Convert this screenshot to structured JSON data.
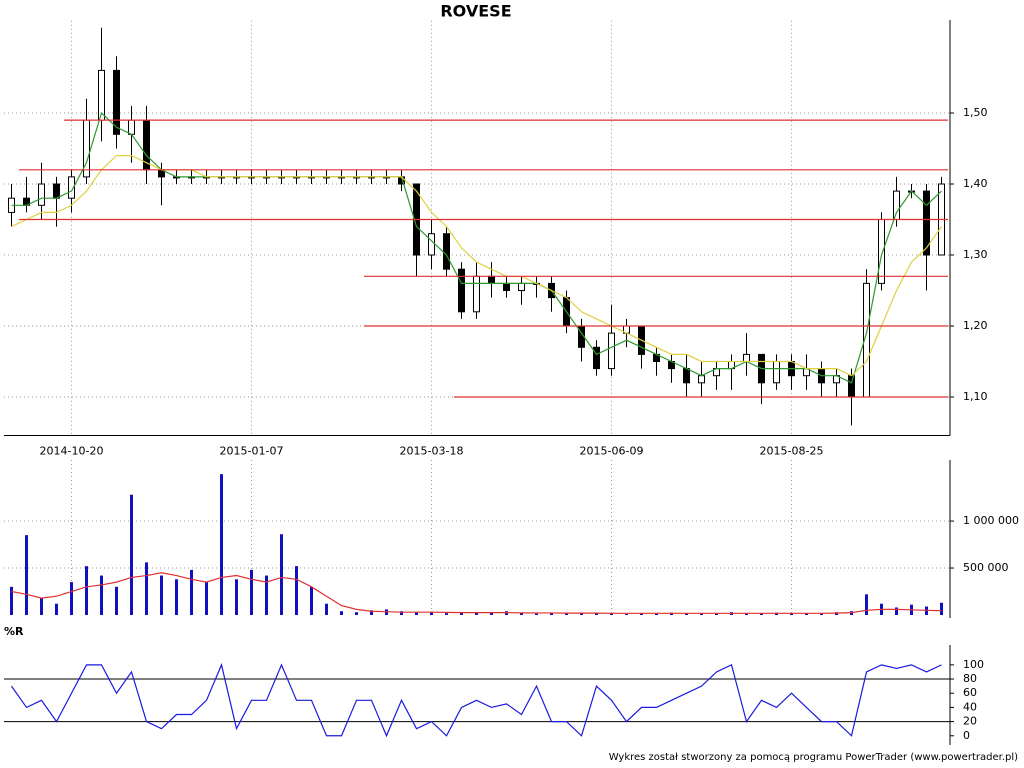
{
  "chart_data": [
    {
      "type": "candlestick",
      "title": "ROVESE",
      "categories": [
        null,
        null,
        null,
        null,
        "2014-10-20",
        null,
        null,
        null,
        null,
        null,
        null,
        null,
        null,
        null,
        null,
        null,
        "2015-01-07",
        null,
        null,
        null,
        null,
        null,
        null,
        null,
        null,
        null,
        null,
        null,
        "2015-03-18",
        null,
        null,
        null,
        null,
        null,
        null,
        null,
        null,
        null,
        null,
        null,
        "2015-06-09",
        null,
        null,
        null,
        null,
        null,
        null,
        null,
        null,
        null,
        null,
        null,
        "2015-08-25",
        null,
        null,
        null,
        null,
        null,
        null,
        null,
        null,
        null,
        null
      ],
      "open": [
        1.36,
        1.38,
        1.37,
        1.4,
        1.38,
        1.41,
        1.49,
        1.56,
        1.47,
        1.49,
        1.42,
        1.41,
        1.41,
        1.41,
        1.41,
        1.41,
        1.41,
        1.41,
        1.41,
        1.41,
        1.41,
        1.41,
        1.41,
        1.41,
        1.41,
        1.41,
        1.41,
        1.4,
        1.3,
        1.33,
        1.28,
        1.22,
        1.27,
        1.26,
        1.25,
        1.26,
        1.26,
        1.24,
        1.2,
        1.17,
        1.14,
        1.19,
        1.2,
        1.16,
        1.15,
        1.14,
        1.12,
        1.13,
        1.14,
        1.15,
        1.16,
        1.12,
        1.15,
        1.13,
        1.14,
        1.12,
        1.13,
        1.1,
        1.26,
        1.35,
        1.39,
        1.39,
        1.3
      ],
      "high": [
        1.4,
        1.41,
        1.43,
        1.41,
        1.42,
        1.52,
        1.62,
        1.58,
        1.51,
        1.51,
        1.43,
        1.42,
        1.42,
        1.42,
        1.42,
        1.42,
        1.42,
        1.42,
        1.42,
        1.42,
        1.42,
        1.42,
        1.42,
        1.42,
        1.42,
        1.42,
        1.42,
        1.4,
        1.35,
        1.34,
        1.29,
        1.29,
        1.29,
        1.27,
        1.27,
        1.27,
        1.27,
        1.25,
        1.21,
        1.18,
        1.23,
        1.21,
        1.2,
        1.17,
        1.16,
        1.16,
        1.15,
        1.15,
        1.16,
        1.19,
        1.16,
        1.16,
        1.16,
        1.16,
        1.15,
        1.14,
        1.14,
        1.28,
        1.36,
        1.41,
        1.4,
        1.4,
        1.41
      ],
      "low": [
        1.34,
        1.36,
        1.35,
        1.34,
        1.36,
        1.4,
        1.46,
        1.45,
        1.43,
        1.4,
        1.37,
        1.4,
        1.4,
        1.4,
        1.4,
        1.4,
        1.4,
        1.4,
        1.4,
        1.4,
        1.4,
        1.4,
        1.4,
        1.4,
        1.4,
        1.4,
        1.39,
        1.27,
        1.28,
        1.27,
        1.21,
        1.21,
        1.24,
        1.24,
        1.23,
        1.24,
        1.22,
        1.19,
        1.15,
        1.13,
        1.13,
        1.17,
        1.14,
        1.13,
        1.12,
        1.1,
        1.1,
        1.11,
        1.11,
        1.13,
        1.09,
        1.11,
        1.11,
        1.11,
        1.1,
        1.1,
        1.06,
        1.1,
        1.25,
        1.34,
        1.38,
        1.25,
        1.3
      ],
      "close": [
        1.38,
        1.37,
        1.4,
        1.38,
        1.41,
        1.49,
        1.56,
        1.47,
        1.49,
        1.42,
        1.41,
        1.41,
        1.41,
        1.41,
        1.41,
        1.41,
        1.41,
        1.41,
        1.41,
        1.41,
        1.41,
        1.41,
        1.41,
        1.41,
        1.41,
        1.41,
        1.4,
        1.3,
        1.33,
        1.28,
        1.22,
        1.27,
        1.26,
        1.25,
        1.26,
        1.26,
        1.24,
        1.2,
        1.17,
        1.14,
        1.19,
        1.2,
        1.16,
        1.15,
        1.14,
        1.12,
        1.13,
        1.14,
        1.15,
        1.16,
        1.12,
        1.15,
        1.13,
        1.14,
        1.12,
        1.13,
        1.1,
        1.26,
        1.35,
        1.39,
        1.39,
        1.3,
        1.4
      ],
      "series": [
        {
          "color": "#2e9a2e",
          "values": [
            1.37,
            1.37,
            1.38,
            1.38,
            1.39,
            1.43,
            1.5,
            1.48,
            1.47,
            1.44,
            1.42,
            1.41,
            1.41,
            1.41,
            1.41,
            1.41,
            1.41,
            1.41,
            1.41,
            1.41,
            1.41,
            1.41,
            1.41,
            1.41,
            1.41,
            1.41,
            1.41,
            1.34,
            1.32,
            1.3,
            1.26,
            1.26,
            1.26,
            1.26,
            1.26,
            1.26,
            1.25,
            1.22,
            1.19,
            1.16,
            1.17,
            1.18,
            1.17,
            1.16,
            1.15,
            1.14,
            1.13,
            1.14,
            1.14,
            1.15,
            1.14,
            1.14,
            1.14,
            1.14,
            1.13,
            1.13,
            1.12,
            1.19,
            1.3,
            1.36,
            1.39,
            1.37,
            1.39
          ]
        },
        {
          "color": "#e0d040",
          "values": [
            1.34,
            1.35,
            1.36,
            1.36,
            1.37,
            1.39,
            1.42,
            1.44,
            1.44,
            1.43,
            1.42,
            1.42,
            1.42,
            1.41,
            1.41,
            1.41,
            1.41,
            1.41,
            1.41,
            1.41,
            1.41,
            1.41,
            1.41,
            1.41,
            1.41,
            1.41,
            1.41,
            1.39,
            1.36,
            1.34,
            1.31,
            1.29,
            1.28,
            1.27,
            1.27,
            1.26,
            1.25,
            1.24,
            1.22,
            1.21,
            1.2,
            1.19,
            1.18,
            1.17,
            1.16,
            1.16,
            1.15,
            1.15,
            1.15,
            1.15,
            1.15,
            1.15,
            1.15,
            1.14,
            1.14,
            1.14,
            1.13,
            1.15,
            1.2,
            1.25,
            1.29,
            1.31,
            1.34
          ]
        }
      ],
      "levels": [
        {
          "value": 1.49,
          "start": 4
        },
        {
          "value": 1.42,
          "start": 1
        },
        {
          "value": 1.35,
          "start": 1
        },
        {
          "value": 1.27,
          "start": 24
        },
        {
          "value": 1.2,
          "start": 24
        },
        {
          "value": 1.1,
          "start": 30
        }
      ],
      "level_color": "#e03030",
      "ylim": [
        1.05,
        1.63
      ],
      "yticks": [
        {
          "value": 1.1,
          "label": "1,10"
        },
        {
          "value": 1.2,
          "label": "1,20"
        },
        {
          "value": 1.3,
          "label": "1,30"
        },
        {
          "value": 1.4,
          "label": "1,40"
        },
        {
          "value": 1.5,
          "label": "1,50"
        }
      ],
      "grid": true
    },
    {
      "type": "bar",
      "color": "#1010c0",
      "values": [
        300000,
        850000,
        180000,
        120000,
        350000,
        520000,
        420000,
        300000,
        1280000,
        560000,
        420000,
        380000,
        480000,
        350000,
        1500000,
        380000,
        480000,
        420000,
        860000,
        520000,
        300000,
        120000,
        40000,
        30000,
        50000,
        60000,
        40000,
        30000,
        35000,
        20000,
        25000,
        30000,
        25000,
        40000,
        20000,
        15000,
        20000,
        25000,
        18000,
        20000,
        15000,
        10000,
        20000,
        15000,
        25000,
        18000,
        20000,
        15000,
        30000,
        15000,
        20000,
        25000,
        15000,
        20000,
        18000,
        30000,
        40000,
        220000,
        120000,
        80000,
        110000,
        90000,
        130000
      ],
      "series": [
        {
          "color": "#e03030",
          "values": [
            250000,
            220000,
            180000,
            200000,
            250000,
            300000,
            320000,
            350000,
            400000,
            420000,
            450000,
            420000,
            380000,
            350000,
            400000,
            420000,
            380000,
            350000,
            400000,
            380000,
            300000,
            200000,
            100000,
            60000,
            40000,
            35000,
            30000,
            30000,
            30000,
            28000,
            25000,
            25000,
            25000,
            25000,
            23000,
            22000,
            22000,
            20000,
            20000,
            20000,
            18000,
            18000,
            18000,
            18000,
            18000,
            18000,
            18000,
            18000,
            18000,
            18000,
            18000,
            18000,
            18000,
            18000,
            18000,
            20000,
            25000,
            50000,
            60000,
            60000,
            55000,
            50000,
            45000
          ]
        }
      ],
      "ylim": [
        0,
        1650000
      ],
      "yticks": [
        {
          "value": 500000,
          "label": "500 000"
        },
        {
          "value": 1000000,
          "label": "1 000 000"
        }
      ],
      "grid": true
    },
    {
      "type": "line",
      "title": "%R",
      "color": "#1a1ae0",
      "values": [
        70,
        40,
        50,
        20,
        60,
        100,
        100,
        60,
        90,
        20,
        10,
        30,
        30,
        50,
        100,
        10,
        50,
        50,
        100,
        50,
        50,
        0,
        0,
        50,
        50,
        0,
        50,
        10,
        20,
        0,
        40,
        50,
        40,
        45,
        30,
        70,
        20,
        20,
        0,
        70,
        50,
        20,
        40,
        40,
        50,
        60,
        70,
        90,
        100,
        20,
        50,
        40,
        60,
        40,
        20,
        20,
        0,
        90,
        100,
        95,
        100,
        90,
        100
      ],
      "levels": [
        20,
        80
      ],
      "ylim": [
        -13,
        128
      ],
      "yticks": [
        0,
        20,
        40,
        60,
        80,
        100
      ]
    }
  ],
  "footer": "Wykres został stworzony za pomocą programu PowerTrader (www.powertrader.pl)"
}
